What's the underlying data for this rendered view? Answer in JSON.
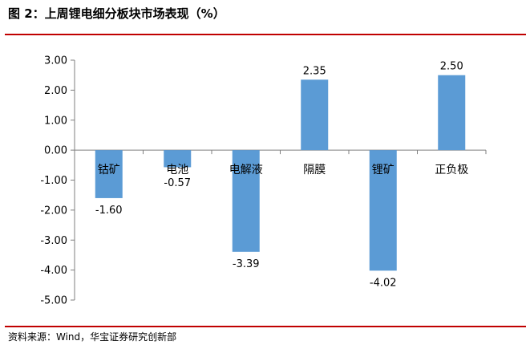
{
  "title": "图 2：上周锂电细分板块市场表现（%）",
  "source": "资料来源：Wind，华宝证券研究创新部",
  "chart_data": {
    "type": "bar",
    "categories": [
      "钴矿",
      "电池",
      "电解液",
      "隔膜",
      "锂矿",
      "正负极"
    ],
    "values": [
      -1.6,
      -0.57,
      -3.39,
      2.35,
      -4.02,
      2.5
    ],
    "value_labels": [
      "-1.60",
      "-0.57",
      "-3.39",
      "2.35",
      "-4.02",
      "2.50"
    ],
    "ylim": [
      -5,
      3
    ],
    "yticks": [
      "3.00",
      "2.00",
      "1.00",
      "0.00",
      "-1.00",
      "-2.00",
      "-3.00",
      "-4.00",
      "-5.00"
    ],
    "bar_color": "#5b9bd5",
    "grid": false,
    "legend": "none"
  }
}
